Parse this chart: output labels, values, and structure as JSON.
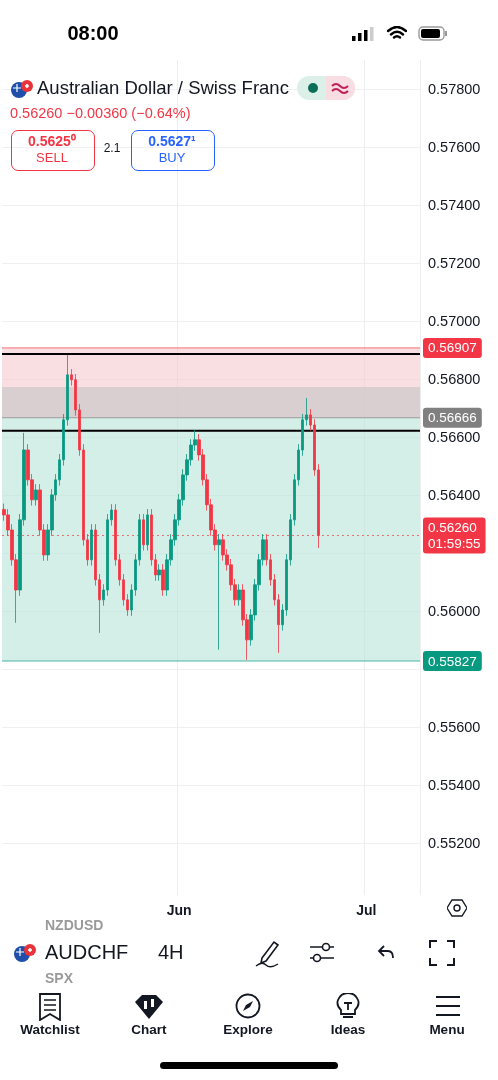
{
  "chart_data": {
    "type": "candlestick",
    "title": "Australian Dollar / Swiss Franc",
    "subtitle": "0.56260 −0.00360 (−0.64%)",
    "annotations": [
      "08:00",
      "2.1",
      "AUDCHF",
      "4H",
      "NZDUSD",
      "SPX",
      "Watchlist",
      "Chart",
      "Explore",
      "Ideas",
      "Menu",
      "0.5625⁰",
      "SELL",
      "0.5627¹",
      "BUY"
    ],
    "categories": [
      null,
      null,
      null,
      null,
      null,
      null,
      null,
      null,
      null,
      null,
      null,
      null,
      null,
      null,
      null,
      null,
      null,
      null,
      null,
      null,
      null,
      null,
      null,
      null,
      null,
      null,
      null,
      null,
      null,
      null,
      null,
      null,
      null,
      null,
      null,
      null,
      null,
      null,
      null,
      null,
      null,
      null,
      null,
      null,
      "Jun",
      null,
      null,
      null,
      null,
      null,
      null,
      null,
      null,
      null,
      null,
      null,
      null,
      null,
      null,
      null,
      null,
      null,
      null,
      null,
      null,
      null,
      null,
      null,
      null,
      null,
      null,
      null,
      null,
      null,
      null,
      null,
      null,
      null,
      null,
      null,
      null,
      null,
      null,
      null,
      null,
      null,
      null,
      null,
      null,
      null,
      null,
      "Jul",
      null,
      null,
      null,
      null,
      null,
      null,
      null,
      null,
      null,
      null,
      null,
      null,
      null
    ],
    "ohlc": [
      [
        0.5635,
        0.5637,
        0.56311,
        0.56331
      ],
      [
        0.56331,
        0.56351,
        0.56259,
        0.56279
      ],
      [
        0.56279,
        0.56299,
        0.56156,
        0.56176
      ],
      [
        0.56176,
        0.56196,
        0.55959,
        0.56072
      ],
      [
        0.56072,
        0.56334,
        0.56052,
        0.56314
      ],
      [
        0.56314,
        0.56614,
        0.56294,
        0.56555
      ],
      [
        0.56555,
        0.56575,
        0.56432,
        0.56452
      ],
      [
        0.56452,
        0.56472,
        0.56363,
        0.56383
      ],
      [
        0.56383,
        0.56437,
        0.56363,
        0.56417
      ],
      [
        0.56417,
        0.56437,
        0.56259,
        0.56279
      ],
      [
        0.56279,
        0.56299,
        0.56173,
        0.56193
      ],
      [
        0.56193,
        0.56299,
        0.56173,
        0.56279
      ],
      [
        0.56279,
        0.5642,
        0.56259,
        0.564
      ],
      [
        0.564,
        0.56472,
        0.5638,
        0.56452
      ],
      [
        0.56452,
        0.56541,
        0.56432,
        0.56521
      ],
      [
        0.56521,
        0.56679,
        0.56501,
        0.56659
      ],
      [
        0.56659,
        0.56883,
        0.56639,
        0.56814
      ],
      [
        0.56814,
        0.56834,
        0.56777,
        0.56797
      ],
      [
        0.56797,
        0.56817,
        0.56673,
        0.56693
      ],
      [
        0.56693,
        0.56713,
        0.56535,
        0.56555
      ],
      [
        0.56555,
        0.56575,
        0.56225,
        0.56245
      ],
      [
        0.56245,
        0.56265,
        0.56156,
        0.56176
      ],
      [
        0.56176,
        0.56299,
        0.56156,
        0.56279
      ],
      [
        0.56279,
        0.56299,
        0.56087,
        0.56107
      ],
      [
        0.56107,
        0.56127,
        0.55924,
        0.56038
      ],
      [
        0.56038,
        0.56092,
        0.56018,
        0.56072
      ],
      [
        0.56072,
        0.56334,
        0.56052,
        0.56314
      ],
      [
        0.56314,
        0.56368,
        0.56294,
        0.56348
      ],
      [
        0.56348,
        0.56368,
        0.56156,
        0.56176
      ],
      [
        0.56176,
        0.56196,
        0.56087,
        0.56107
      ],
      [
        0.56107,
        0.56127,
        0.56018,
        0.56038
      ],
      [
        0.56038,
        0.56058,
        0.55983,
        0.56003
      ],
      [
        0.56003,
        0.56092,
        0.55983,
        0.56072
      ],
      [
        0.56072,
        0.56196,
        0.56052,
        0.56176
      ],
      [
        0.56176,
        0.56334,
        0.56156,
        0.56314
      ],
      [
        0.56314,
        0.56334,
        0.56208,
        0.56228
      ],
      [
        0.56228,
        0.56351,
        0.56208,
        0.56331
      ],
      [
        0.56331,
        0.56351,
        0.56156,
        0.56176
      ],
      [
        0.56176,
        0.56196,
        0.56104,
        0.56124
      ],
      [
        0.56124,
        0.56161,
        0.56104,
        0.56141
      ],
      [
        0.56141,
        0.56161,
        0.56052,
        0.56072
      ],
      [
        0.56072,
        0.56196,
        0.56052,
        0.56176
      ],
      [
        0.56176,
        0.56265,
        0.56156,
        0.56245
      ],
      [
        0.56245,
        0.56334,
        0.56225,
        0.56314
      ],
      [
        0.56314,
        0.56403,
        0.56294,
        0.56383
      ],
      [
        0.56383,
        0.56489,
        0.56363,
        0.56469
      ],
      [
        0.56469,
        0.56541,
        0.56449,
        0.56521
      ],
      [
        0.56521,
        0.56592,
        0.56501,
        0.56572
      ],
      [
        0.56572,
        0.56624,
        0.56552,
        0.5659
      ],
      [
        0.5659,
        0.5661,
        0.56518,
        0.56538
      ],
      [
        0.56538,
        0.56558,
        0.56432,
        0.56452
      ],
      [
        0.56452,
        0.56472,
        0.56346,
        0.56366
      ],
      [
        0.56366,
        0.56386,
        0.56259,
        0.56279
      ],
      [
        0.56279,
        0.56299,
        0.56208,
        0.56228
      ],
      [
        0.56228,
        0.56265,
        0.55866,
        0.56245
      ],
      [
        0.56245,
        0.56265,
        0.56173,
        0.56193
      ],
      [
        0.56193,
        0.56213,
        0.56139,
        0.56159
      ],
      [
        0.56159,
        0.56179,
        0.5607,
        0.5609
      ],
      [
        0.5609,
        0.5611,
        0.56018,
        0.56038
      ],
      [
        0.56038,
        0.56092,
        0.56018,
        0.56072
      ],
      [
        0.56072,
        0.56092,
        0.55949,
        0.55969
      ],
      [
        0.55969,
        0.55989,
        0.55831,
        0.559
      ],
      [
        0.559,
        0.56006,
        0.5588,
        0.55986
      ],
      [
        0.55986,
        0.5611,
        0.55966,
        0.5609
      ],
      [
        0.5609,
        0.56196,
        0.5607,
        0.56176
      ],
      [
        0.56176,
        0.56265,
        0.56156,
        0.56245
      ],
      [
        0.56245,
        0.56265,
        0.56156,
        0.56176
      ],
      [
        0.56176,
        0.56196,
        0.56087,
        0.56107
      ],
      [
        0.56107,
        0.56127,
        0.56018,
        0.56038
      ],
      [
        0.56038,
        0.56058,
        0.55855,
        0.55952
      ],
      [
        0.55952,
        0.56023,
        0.55932,
        0.56003
      ],
      [
        0.56003,
        0.56196,
        0.55983,
        0.56176
      ],
      [
        0.56176,
        0.56334,
        0.56156,
        0.56314
      ],
      [
        0.56314,
        0.56472,
        0.56294,
        0.56452
      ],
      [
        0.56452,
        0.56575,
        0.56432,
        0.56555
      ],
      [
        0.56555,
        0.56679,
        0.56535,
        0.56659
      ],
      [
        0.56659,
        0.56734,
        0.56639,
        0.56676
      ],
      [
        0.56676,
        0.56696,
        0.56621,
        0.56641
      ],
      [
        0.56641,
        0.56661,
        0.56466,
        0.56486
      ],
      [
        0.56486,
        0.56506,
        0.56217,
        0.5626
      ],
      null,
      null,
      null,
      null,
      null,
      null,
      null,
      null,
      null,
      null,
      null,
      null,
      null,
      null,
      null,
      null,
      null,
      null,
      null,
      null,
      null,
      null,
      null,
      null,
      null
    ],
    "ylim": [
      0.5502,
      0.579
    ],
    "yticks": [
      {
        "value": 0.552,
        "label": "0.55200"
      },
      {
        "value": 0.554,
        "label": "0.55400"
      },
      {
        "value": 0.556,
        "label": "0.55600"
      },
      {
        "value": 0.558,
        "label": null
      },
      {
        "value": 0.56,
        "label": "0.56000"
      },
      {
        "value": 0.562,
        "label": null
      },
      {
        "value": 0.564,
        "label": "0.56400"
      },
      {
        "value": 0.566,
        "label": "0.56600"
      },
      {
        "value": 0.568,
        "label": "0.56800"
      },
      {
        "value": 0.57,
        "label": "0.57000"
      },
      {
        "value": 0.572,
        "label": "0.57200"
      },
      {
        "value": 0.574,
        "label": "0.57400"
      },
      {
        "value": 0.576,
        "label": "0.57600"
      },
      {
        "value": 0.578,
        "label": "0.57800"
      }
    ],
    "grid": true,
    "bands": [
      {
        "axis": "y",
        "from": 0.56666,
        "to": 0.56907,
        "color": "#f7c9cf"
      },
      {
        "axis": "y",
        "from": 0.55827,
        "to": 0.56666,
        "color": "#b8e2d8"
      },
      {
        "axis": "y",
        "from": 0.56666,
        "to": 0.56772,
        "color": "#c4c4c4"
      }
    ],
    "ref_lines": [
      {
        "axis": "y",
        "value": 0.56907,
        "label": "0.56907",
        "color": "#f23645"
      },
      {
        "axis": "y",
        "value": 0.56886,
        "color": "#000000"
      },
      {
        "axis": "y",
        "value": 0.56666,
        "label": "0.56666",
        "color": "#808080"
      },
      {
        "axis": "y",
        "value": 0.56621,
        "color": "#000000"
      },
      {
        "axis": "y",
        "value": 0.5626,
        "label": "0.56260\n01:59:55",
        "color": "#f23645",
        "line_style": "dotted"
      },
      {
        "axis": "y",
        "value": 0.55827,
        "label": "0.55827",
        "color": "#089981"
      }
    ]
  }
}
